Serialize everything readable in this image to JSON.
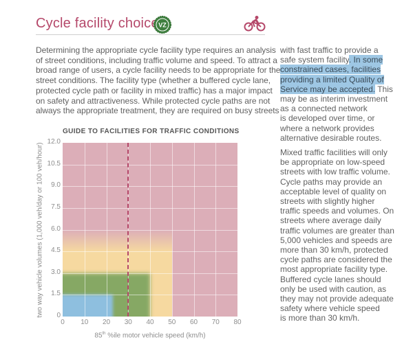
{
  "header": {
    "title": "Cycle facility choice",
    "badge_text": "VZ",
    "badge_color": "#3f7f3f",
    "accent_color": "#b5486a",
    "icon": "bicycle-icon"
  },
  "left_paragraph": [
    "Determining the appropriate cycle facility type requires an analysis",
    "of street conditions, including traffic volume and speed. To attract a",
    "broad range of users, a cycle facility needs to be appropriate for the",
    "street conditions. The facility type (whether a buffered cycle lane,",
    "protected cycle path or facility in mixed traffic) has a major impact",
    "on safety and attractiveness. While protected cycle paths are not",
    "always the appropriate treatment, they are required on busy streets"
  ],
  "right_paragraph_1": [
    [
      {
        "t": "with fast traffic to provide a",
        "h": false
      }
    ],
    [
      {
        "t": "safe system facility",
        "h": false
      },
      {
        "t": ". In some",
        "h": true
      }
    ],
    [
      {
        "t": "constrained cases, facilities",
        "h": true
      }
    ],
    [
      {
        "t": "providing a limited Quality of",
        "h": true
      }
    ],
    [
      {
        "t": "Service may be accepted.",
        "h": true
      },
      {
        "t": " This",
        "h": false
      }
    ],
    [
      {
        "t": "may be as interim investment",
        "h": false
      }
    ],
    [
      {
        "t": "as a connected network",
        "h": false
      }
    ],
    [
      {
        "t": "is developed over time, or",
        "h": false
      }
    ],
    [
      {
        "t": "where a network provides",
        "h": false
      }
    ],
    [
      {
        "t": "alternative desirable routes.",
        "h": false
      }
    ]
  ],
  "right_paragraph_2": [
    "Mixed traffic facilities will only",
    "be appropriate on low-speed",
    "streets with low traffic volume.",
    "Cycle paths may provide an",
    "acceptable level of quality on",
    "streets with slightly higher",
    "traffic speeds and volumes. On",
    "streets where average daily",
    "traffic volumes are greater than",
    "5,000 vehicles and speeds are",
    "more than 30 km/h, protected",
    "cycle paths are considered the",
    "most appropriate facility type.",
    "Buffered cycle lanes should",
    "only be used with caution, as",
    "they may not provide adequate",
    "safety where vehicle speed",
    "is more than 30 km/h."
  ],
  "chart_data": {
    "type": "heatmap",
    "title": "GUIDE TO FACILITIES FOR TRAFFIC CONDITIONS",
    "xlabel": "85th %ile motor vehicle speed (km/h)",
    "xlabel_parts": [
      "85",
      "th",
      " %ile motor vehicle speed (km/h)"
    ],
    "ylabel": "two way vehicle volumes (1,000 veh/day or 100 veh/hour)",
    "xlim": [
      0,
      80
    ],
    "ylim": [
      0,
      12
    ],
    "xticks": [
      "0",
      "10",
      "20",
      "30",
      "40",
      "50",
      "60",
      "70",
      "80"
    ],
    "yticks": [
      "0",
      "1.5",
      "3.0",
      "4.5",
      "6.0",
      "7.5",
      "9.0",
      "10.5",
      "12.0"
    ],
    "grid": true,
    "background_color": "#dcaeb8",
    "regions": [
      {
        "color": "#f6d9a0",
        "x": [
          0,
          50
        ],
        "y": [
          0,
          4.5
        ],
        "fade_top_to": 6
      },
      {
        "color": "#86a864",
        "x": [
          0,
          40
        ],
        "y": [
          0,
          3
        ]
      },
      {
        "color": "#8ebfdf",
        "x": [
          0,
          23
        ],
        "y": [
          0,
          1.5
        ]
      }
    ],
    "reference_line": {
      "x": 30,
      "style": "dashed",
      "color": "#b5486a"
    }
  }
}
